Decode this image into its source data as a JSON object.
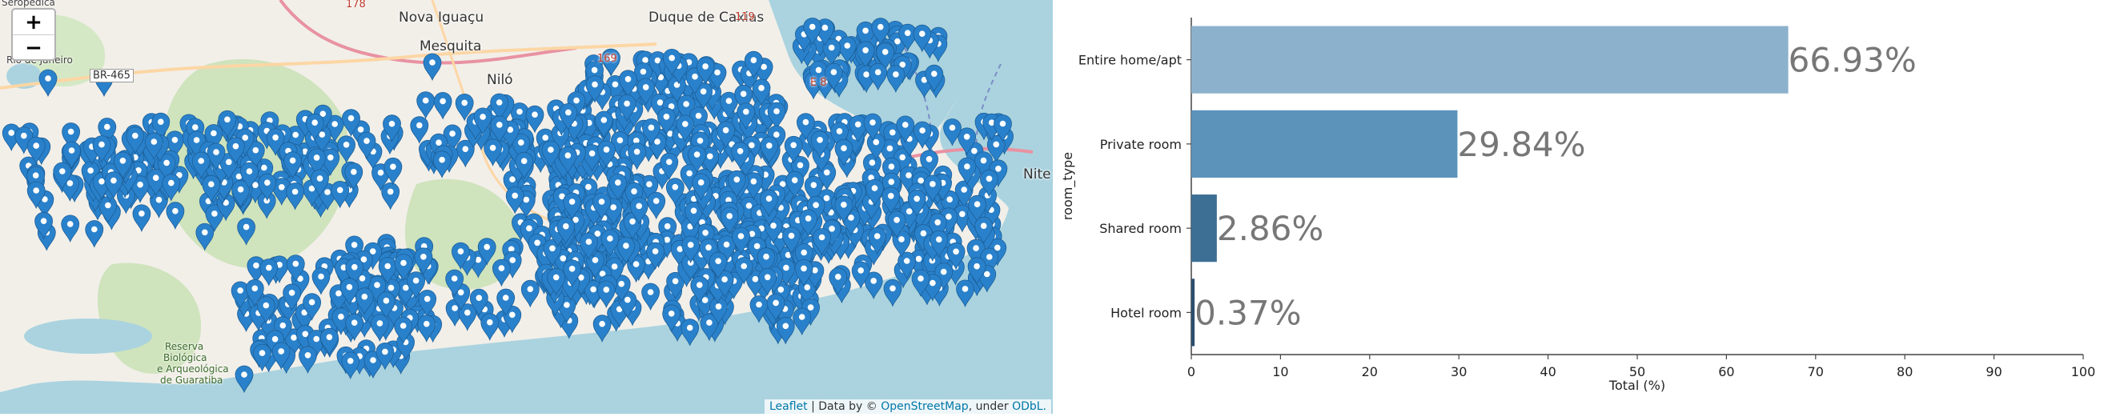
{
  "map": {
    "zoom_in_label": "+",
    "zoom_out_label": "−",
    "attribution": {
      "leaflet": "Leaflet",
      "sep1": " | Data by © ",
      "osm": "OpenStreetMap",
      "sep2": ", under ",
      "odbl": "ODbL."
    },
    "place_labels": {
      "nova_iguacu": "Nova Iguaçu",
      "mesquita": "Mesquita",
      "nilo": "Niló",
      "duque": "Duque de Caxias",
      "niteroi": "Nite",
      "road": "BR-465",
      "rio_de_janeiro": "Rio de Janeiro",
      "seropedica": "Seropédica",
      "reserva_1": "Reserva",
      "reserva_2": "Biológica",
      "reserva_3": "e Arqueológica",
      "reserva_4": "de Guaratiba",
      "road_178": "178",
      "road_119": "119",
      "road_169": "169",
      "road_e8": "E 8"
    },
    "marker_color": "#2a81cb"
  },
  "chart_data": {
    "type": "bar",
    "orientation": "horizontal",
    "categories": [
      "Entire home/apt",
      "Private room",
      "Shared room",
      "Hotel room"
    ],
    "values": [
      66.93,
      29.84,
      2.86,
      0.37
    ],
    "value_labels": [
      "66.93%",
      "29.84%",
      "2.86%",
      "0.37%"
    ],
    "xlabel": "Total (%)",
    "ylabel": "room_type",
    "xlim": [
      0,
      100
    ],
    "xticks": [
      0,
      10,
      20,
      30,
      40,
      50,
      60,
      70,
      80,
      90,
      100
    ],
    "colors": [
      "#8cb1cc",
      "#5b93bb",
      "#3d6f94",
      "#2b4f6e"
    ],
    "label_color": "#777777",
    "grid": false
  }
}
